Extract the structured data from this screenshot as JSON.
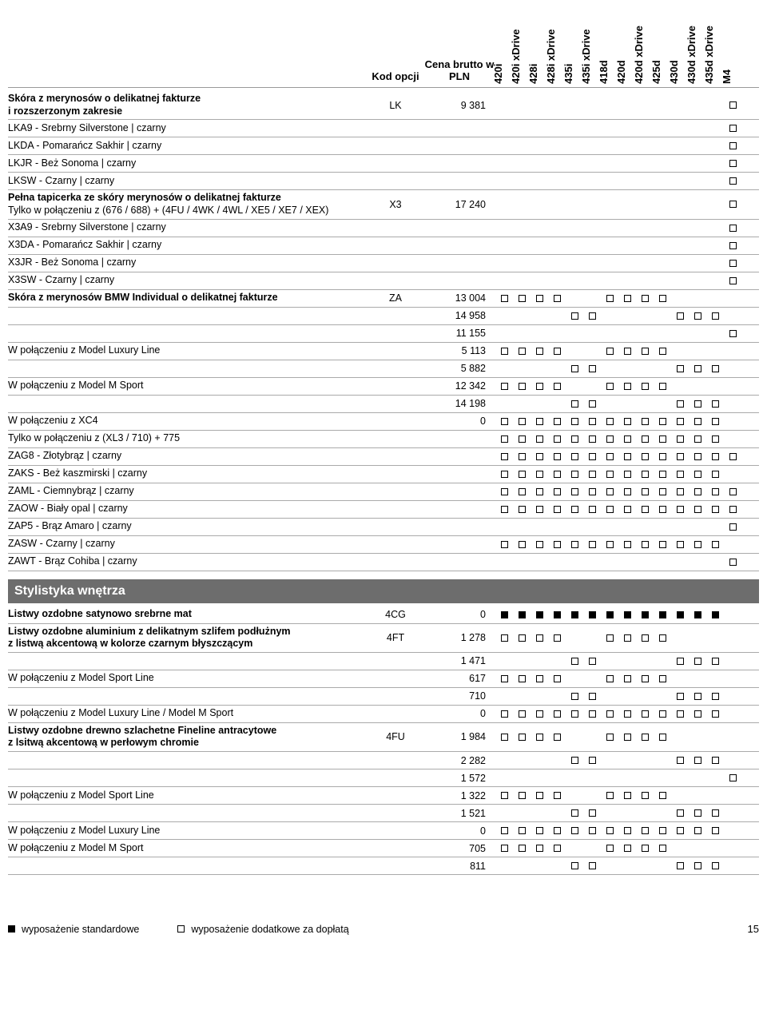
{
  "header": {
    "kod": "Kod opcji",
    "cena": "Cena brutto w PLN",
    "models": [
      "420i",
      "420i xDrive",
      "428i",
      "428i xDrive",
      "435i",
      "435i xDrive",
      "418d",
      "420d",
      "420d xDrive",
      "425d",
      "430d",
      "430d xDrive",
      "435d xDrive",
      "M4"
    ]
  },
  "section_styl": "Stylistyka wnętrza",
  "rows": [
    {
      "label": "<b>Skóra z merynosów o delikatnej fakturze<br>i rozszerzonym zakresie</b>",
      "kod": "LK",
      "cena": "9 381",
      "cells": [
        "",
        "",
        "",
        "",
        "",
        "",
        "",
        "",
        "",
        "",
        "",
        "",
        "",
        "o"
      ]
    },
    {
      "label": "LKA9 - Srebrny Silverstone | czarny",
      "kod": "",
      "cena": "",
      "cells": [
        "",
        "",
        "",
        "",
        "",
        "",
        "",
        "",
        "",
        "",
        "",
        "",
        "",
        "o"
      ]
    },
    {
      "label": "LKDA - Pomarańcz Sakhir | czarny",
      "kod": "",
      "cena": "",
      "cells": [
        "",
        "",
        "",
        "",
        "",
        "",
        "",
        "",
        "",
        "",
        "",
        "",
        "",
        "o"
      ]
    },
    {
      "label": "LKJR - Beż Sonoma | czarny",
      "kod": "",
      "cena": "",
      "cells": [
        "",
        "",
        "",
        "",
        "",
        "",
        "",
        "",
        "",
        "",
        "",
        "",
        "",
        "o"
      ]
    },
    {
      "label": "LKSW - Czarny | czarny",
      "kod": "",
      "cena": "",
      "cells": [
        "",
        "",
        "",
        "",
        "",
        "",
        "",
        "",
        "",
        "",
        "",
        "",
        "",
        "o"
      ]
    },
    {
      "label": "<b>Pełna tapicerka ze skóry merynosów o delikatnej fakturze</b><br>Tylko w połączeniu z (676 / 688) + (4FU / 4WK / 4WL / XE5 / XE7 / XEX)",
      "kod": "X3",
      "cena": "17 240",
      "cells": [
        "",
        "",
        "",
        "",
        "",
        "",
        "",
        "",
        "",
        "",
        "",
        "",
        "",
        "o"
      ]
    },
    {
      "label": "X3A9 - Srebrny Silverstone | czarny",
      "kod": "",
      "cena": "",
      "cells": [
        "",
        "",
        "",
        "",
        "",
        "",
        "",
        "",
        "",
        "",
        "",
        "",
        "",
        "o"
      ]
    },
    {
      "label": "X3DA - Pomarańcz Sakhir | czarny",
      "kod": "",
      "cena": "",
      "cells": [
        "",
        "",
        "",
        "",
        "",
        "",
        "",
        "",
        "",
        "",
        "",
        "",
        "",
        "o"
      ]
    },
    {
      "label": "X3JR - Beż Sonoma | czarny",
      "kod": "",
      "cena": "",
      "cells": [
        "",
        "",
        "",
        "",
        "",
        "",
        "",
        "",
        "",
        "",
        "",
        "",
        "",
        "o"
      ]
    },
    {
      "label": "X3SW - Czarny | czarny",
      "kod": "",
      "cena": "",
      "cells": [
        "",
        "",
        "",
        "",
        "",
        "",
        "",
        "",
        "",
        "",
        "",
        "",
        "",
        "o"
      ]
    },
    {
      "label": "<b>Skóra z merynosów BMW Individual o delikatnej fakturze</b>",
      "kod": "ZA",
      "cena": "13 004",
      "cells": [
        "o",
        "o",
        "o",
        "o",
        "",
        "",
        "o",
        "o",
        "o",
        "o",
        "",
        "",
        "",
        ""
      ]
    },
    {
      "label": "",
      "kod": "",
      "cena": "14 958",
      "cells": [
        "",
        "",
        "",
        "",
        "o",
        "o",
        "",
        "",
        "",
        "",
        "o",
        "o",
        "o",
        ""
      ]
    },
    {
      "label": "",
      "kod": "",
      "cena": "11 155",
      "cells": [
        "",
        "",
        "",
        "",
        "",
        "",
        "",
        "",
        "",
        "",
        "",
        "",
        "",
        "o"
      ]
    },
    {
      "label": "W połączeniu z Model Luxury Line",
      "kod": "",
      "cena": "5 113",
      "cells": [
        "o",
        "o",
        "o",
        "o",
        "",
        "",
        "o",
        "o",
        "o",
        "o",
        "",
        "",
        "",
        ""
      ]
    },
    {
      "label": "",
      "kod": "",
      "cena": "5 882",
      "cells": [
        "",
        "",
        "",
        "",
        "o",
        "o",
        "",
        "",
        "",
        "",
        "o",
        "o",
        "o",
        ""
      ]
    },
    {
      "label": "W połączeniu z Model M Sport",
      "kod": "",
      "cena": "12 342",
      "cells": [
        "o",
        "o",
        "o",
        "o",
        "",
        "",
        "o",
        "o",
        "o",
        "o",
        "",
        "",
        "",
        ""
      ]
    },
    {
      "label": "",
      "kod": "",
      "cena": "14 198",
      "cells": [
        "",
        "",
        "",
        "",
        "o",
        "o",
        "",
        "",
        "",
        "",
        "o",
        "o",
        "o",
        ""
      ]
    },
    {
      "label": "W połączeniu z XC4",
      "kod": "",
      "cena": "0",
      "cells": [
        "o",
        "o",
        "o",
        "o",
        "o",
        "o",
        "o",
        "o",
        "o",
        "o",
        "o",
        "o",
        "o",
        ""
      ]
    },
    {
      "label": "Tylko w połączeniu z (XL3 / 710) + 775",
      "kod": "",
      "cena": "",
      "cells": [
        "o",
        "o",
        "o",
        "o",
        "o",
        "o",
        "o",
        "o",
        "o",
        "o",
        "o",
        "o",
        "o",
        ""
      ]
    },
    {
      "label": "ZAG8 - Złotybrąz | czarny",
      "kod": "",
      "cena": "",
      "cells": [
        "o",
        "o",
        "o",
        "o",
        "o",
        "o",
        "o",
        "o",
        "o",
        "o",
        "o",
        "o",
        "o",
        "o"
      ]
    },
    {
      "label": "ZAKS - Beż kaszmirski | czarny",
      "kod": "",
      "cena": "",
      "cells": [
        "o",
        "o",
        "o",
        "o",
        "o",
        "o",
        "o",
        "o",
        "o",
        "o",
        "o",
        "o",
        "o",
        ""
      ]
    },
    {
      "label": "ZAML - Ciemnybrąz | czarny",
      "kod": "",
      "cena": "",
      "cells": [
        "o",
        "o",
        "o",
        "o",
        "o",
        "o",
        "o",
        "o",
        "o",
        "o",
        "o",
        "o",
        "o",
        "o"
      ]
    },
    {
      "label": "ZAOW - Biały opal | czarny",
      "kod": "",
      "cena": "",
      "cells": [
        "o",
        "o",
        "o",
        "o",
        "o",
        "o",
        "o",
        "o",
        "o",
        "o",
        "o",
        "o",
        "o",
        "o"
      ]
    },
    {
      "label": "ZAP5 - Brąz Amaro | czarny",
      "kod": "",
      "cena": "",
      "cells": [
        "",
        "",
        "",
        "",
        "",
        "",
        "",
        "",
        "",
        "",
        "",
        "",
        "",
        "o"
      ]
    },
    {
      "label": "ZASW - Czarny | czarny",
      "kod": "",
      "cena": "",
      "cells": [
        "o",
        "o",
        "o",
        "o",
        "o",
        "o",
        "o",
        "o",
        "o",
        "o",
        "o",
        "o",
        "o",
        ""
      ]
    },
    {
      "label": "ZAWT - Brąz Cohiba | czarny",
      "kod": "",
      "cena": "",
      "cells": [
        "",
        "",
        "",
        "",
        "",
        "",
        "",
        "",
        "",
        "",
        "",
        "",
        "",
        "o"
      ]
    }
  ],
  "rows2": [
    {
      "label": "<b>Listwy ozdobne satynowo srebrne mat</b>",
      "kod": "4CG",
      "cena": "0",
      "cells": [
        "f",
        "f",
        "f",
        "f",
        "f",
        "f",
        "f",
        "f",
        "f",
        "f",
        "f",
        "f",
        "f",
        ""
      ]
    },
    {
      "label": "<b>Listwy ozdobne aluminium z delikatnym szlifem podłużnym<br>z listwą akcentową w kolorze czarnym błyszczącym</b>",
      "kod": "4FT",
      "cena": "1 278",
      "cells": [
        "o",
        "o",
        "o",
        "o",
        "",
        "",
        "o",
        "o",
        "o",
        "o",
        "",
        "",
        "",
        ""
      ]
    },
    {
      "label": "",
      "kod": "",
      "cena": "1 471",
      "cells": [
        "",
        "",
        "",
        "",
        "o",
        "o",
        "",
        "",
        "",
        "",
        "o",
        "o",
        "o",
        ""
      ]
    },
    {
      "label": "W połączeniu z Model Sport Line",
      "kod": "",
      "cena": "617",
      "cells": [
        "o",
        "o",
        "o",
        "o",
        "",
        "",
        "o",
        "o",
        "o",
        "o",
        "",
        "",
        "",
        ""
      ]
    },
    {
      "label": "",
      "kod": "",
      "cena": "710",
      "cells": [
        "",
        "",
        "",
        "",
        "o",
        "o",
        "",
        "",
        "",
        "",
        "o",
        "o",
        "o",
        ""
      ]
    },
    {
      "label": "W połączeniu z Model Luxury Line / Model M Sport",
      "kod": "",
      "cena": "0",
      "cells": [
        "o",
        "o",
        "o",
        "o",
        "o",
        "o",
        "o",
        "o",
        "o",
        "o",
        "o",
        "o",
        "o",
        ""
      ]
    },
    {
      "label": "<b>Listwy ozdobne drewno szlachetne Fineline antracytowe<br>z lsitwą akcentową w perłowym chromie</b>",
      "kod": "4FU",
      "cena": "1 984",
      "cells": [
        "o",
        "o",
        "o",
        "o",
        "",
        "",
        "o",
        "o",
        "o",
        "o",
        "",
        "",
        "",
        ""
      ]
    },
    {
      "label": "",
      "kod": "",
      "cena": "2 282",
      "cells": [
        "",
        "",
        "",
        "",
        "o",
        "o",
        "",
        "",
        "",
        "",
        "o",
        "o",
        "o",
        ""
      ]
    },
    {
      "label": "",
      "kod": "",
      "cena": "1 572",
      "cells": [
        "",
        "",
        "",
        "",
        "",
        "",
        "",
        "",
        "",
        "",
        "",
        "",
        "",
        "o"
      ]
    },
    {
      "label": "W połączeniu z Model Sport Line",
      "kod": "",
      "cena": "1 322",
      "cells": [
        "o",
        "o",
        "o",
        "o",
        "",
        "",
        "o",
        "o",
        "o",
        "o",
        "",
        "",
        "",
        ""
      ]
    },
    {
      "label": "",
      "kod": "",
      "cena": "1 521",
      "cells": [
        "",
        "",
        "",
        "",
        "o",
        "o",
        "",
        "",
        "",
        "",
        "o",
        "o",
        "o",
        ""
      ]
    },
    {
      "label": "W połączeniu z Model Luxury Line",
      "kod": "",
      "cena": "0",
      "cells": [
        "o",
        "o",
        "o",
        "o",
        "o",
        "o",
        "o",
        "o",
        "o",
        "o",
        "o",
        "o",
        "o",
        ""
      ]
    },
    {
      "label": "W połączeniu z Model M Sport",
      "kod": "",
      "cena": "705",
      "cells": [
        "o",
        "o",
        "o",
        "o",
        "",
        "",
        "o",
        "o",
        "o",
        "o",
        "",
        "",
        "",
        ""
      ]
    },
    {
      "label": "",
      "kod": "",
      "cena": "811",
      "cells": [
        "",
        "",
        "",
        "",
        "o",
        "o",
        "",
        "",
        "",
        "",
        "o",
        "o",
        "o",
        ""
      ]
    }
  ],
  "legend": {
    "std": "wyposażenie standardowe",
    "opt": "wyposażenie dodatkowe za dopłatą",
    "page": "15"
  }
}
